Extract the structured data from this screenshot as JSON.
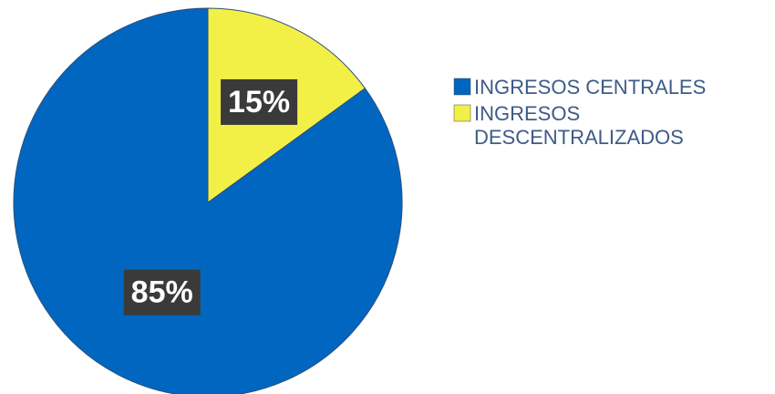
{
  "chart_data": {
    "type": "pie",
    "slices": [
      {
        "name": "INGRESOS CENTRALES",
        "value": 85,
        "label": "85%",
        "color": "#0066c0"
      },
      {
        "name": "INGRESOS DESCENTRALIZADOS",
        "value": 15,
        "label": "15%",
        "color": "#f2f046"
      }
    ],
    "legend": {
      "placement": "right",
      "entries": [
        {
          "lines": [
            "INGRESOS CENTRALES"
          ]
        },
        {
          "lines": [
            "INGRESOS",
            "DESCENTRALIZADOS"
          ]
        }
      ]
    },
    "colors": {
      "legend_text": "#3d5b85",
      "label_box": "#3a3a3a",
      "label_text": "#ffffff"
    }
  }
}
